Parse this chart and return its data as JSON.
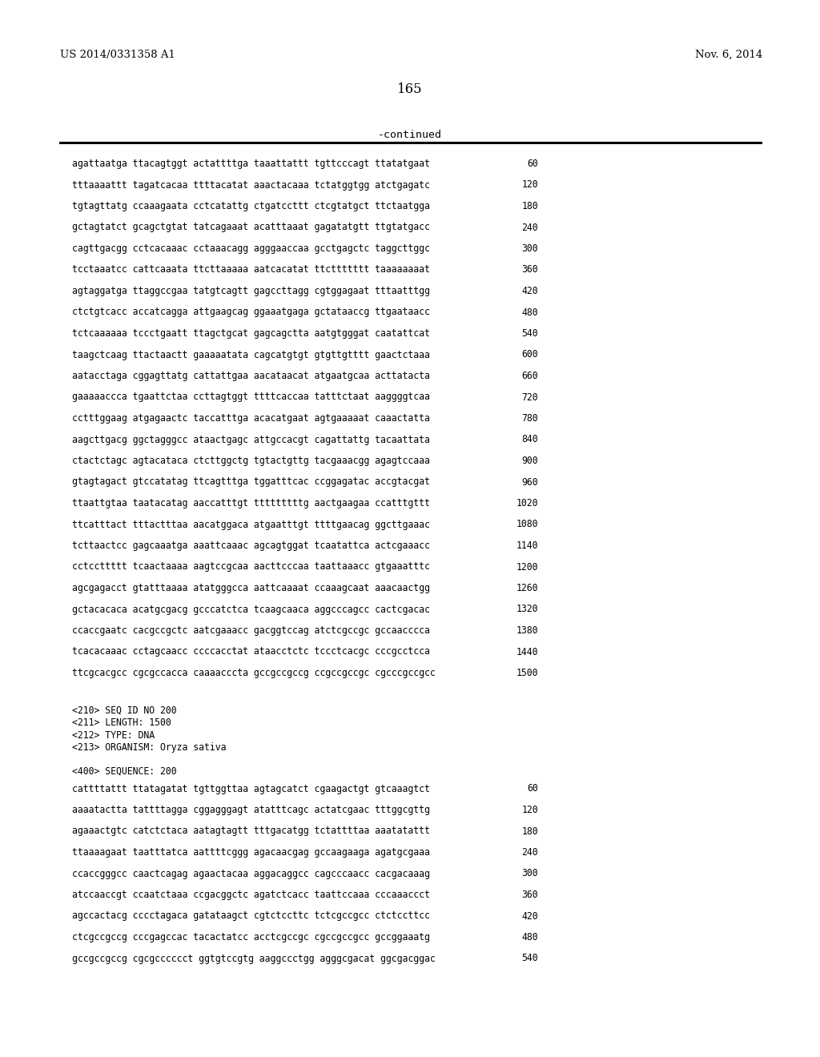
{
  "header_left": "US 2014/0331358 A1",
  "header_right": "Nov. 6, 2014",
  "page_number": "165",
  "continued_text": "-continued",
  "background_color": "#ffffff",
  "text_color": "#000000",
  "sequence_lines_part1": [
    [
      "agattaatga ttacagtggt actattttga taaattattt tgttcccagt ttatatgaat",
      "60"
    ],
    [
      "tttaaaattt tagatcacaa ttttacatat aaactacaaa tctatggtgg atctgagatc",
      "120"
    ],
    [
      "tgtagttatg ccaaagaata cctcatattg ctgatccttt ctcgtatgct ttctaatgga",
      "180"
    ],
    [
      "gctagtatct gcagctgtat tatcagaaat acatttaaat gagatatgtt ttgtatgacc",
      "240"
    ],
    [
      "cagttgacgg cctcacaaac cctaaacagg agggaaccaa gcctgagctc taggcttggc",
      "300"
    ],
    [
      "tcctaaatcc cattcaaata ttcttaaaaa aatcacatat ttcttttttt taaaaaaaat",
      "360"
    ],
    [
      "agtaggatga ttaggccgaa tatgtcagtt gagccttagg cgtggagaat tttaatttgg",
      "420"
    ],
    [
      "ctctgtcacc accatcagga attgaagcag ggaaatgaga gctataaccg ttgaataacc",
      "480"
    ],
    [
      "tctcaaaaaa tccctgaatt ttagctgcat gagcagctta aatgtgggat caatattcat",
      "540"
    ],
    [
      "taagctcaag ttactaactt gaaaaatata cagcatgtgt gtgttgtttt gaactctaaa",
      "600"
    ],
    [
      "aatacctaga cggagttatg cattattgaa aacataacat atgaatgcaa acttatacta",
      "660"
    ],
    [
      "gaaaaaccca tgaattctaa ccttagtggt ttttcaccaa tatttctaat aaggggtcaa",
      "720"
    ],
    [
      "cctttggaag atgagaactc taccatttga acacatgaat agtgaaaaat caaactatta",
      "780"
    ],
    [
      "aagcttgacg ggctagggcc ataactgagc attgccacgt cagattattg tacaattata",
      "840"
    ],
    [
      "ctactctagc agtacataca ctcttggctg tgtactgttg tacgaaacgg agagtccaaa",
      "900"
    ],
    [
      "gtagtagact gtccatatag ttcagtttga tggatttcac ccggagatac accgtacgat",
      "960"
    ],
    [
      "ttaattgtaa taatacatag aaccatttgt tttttttttg aactgaagaa ccatttgttt",
      "1020"
    ],
    [
      "ttcatttact tttactttaa aacatggaca atgaatttgt ttttgaacag ggcttgaaac",
      "1080"
    ],
    [
      "tcttaactcc gagcaaatga aaattcaaac agcagtggat tcaatattca actcgaaacc",
      "1140"
    ],
    [
      "cctccttttt tcaactaaaa aagtccgcaa aacttcccaa taattaaacc gtgaaatttc",
      "1200"
    ],
    [
      "agcgagacct gtatttaaaa atatgggcca aattcaaaat ccaaagcaat aaacaactgg",
      "1260"
    ],
    [
      "gctacacaca acatgcgacg gcccatctca tcaagcaaca aggcccagcc cactcgacac",
      "1320"
    ],
    [
      "ccaccgaatc cacgccgctc aatcgaaacc gacggtccag atctcgccgc gccaacccca",
      "1380"
    ],
    [
      "tcacacaaac cctagcaacc ccccacctat ataacctctc tccctcacgc cccgcctcca",
      "1440"
    ],
    [
      "ttcgcacgcc cgcgccacca caaaacccta gccgccgccg ccgccgccgc cgcccgccgcc",
      "1500"
    ]
  ],
  "metadata_lines": [
    "<210> SEQ ID NO 200",
    "<211> LENGTH: 1500",
    "<212> TYPE: DNA",
    "<213> ORGANISM: Oryza sativa"
  ],
  "sequence_label": "<400> SEQUENCE: 200",
  "sequence_lines_part2": [
    [
      "cattttattt ttatagatat tgttggttaa agtagcatct cgaagactgt gtcaaagtct",
      "60"
    ],
    [
      "aaaatactta tattttagga cggagggagt atatttcagc actatcgaac tttggcgttg",
      "120"
    ],
    [
      "agaaactgtc catctctaca aatagtagtt tttgacatgg tctattttaa aaatatattt",
      "180"
    ],
    [
      "ttaaaagaat taatttatca aattttcggg agacaacgag gccaagaaga agatgcgaaa",
      "240"
    ],
    [
      "ccaccgggcc caactcagag agaactacaa aggacaggcc cagcccaacc cacgacaaag",
      "300"
    ],
    [
      "atccaaccgt ccaatctaaa ccgacggctc agatctcacc taattccaaa cccaaaccct",
      "360"
    ],
    [
      "agccactacg cccctagaca gatataagct cgtctccttc tctcgccgcc ctctccttcc",
      "420"
    ],
    [
      "ctcgccgccg cccgagccac tacactatcc acctcgccgc cgccgccgcc gccggaaatg",
      "480"
    ],
    [
      "gccgccgccg cgcgcccccct ggtgtccgtg aaggccctgg agggcgacat ggcgacggac",
      "540"
    ]
  ]
}
